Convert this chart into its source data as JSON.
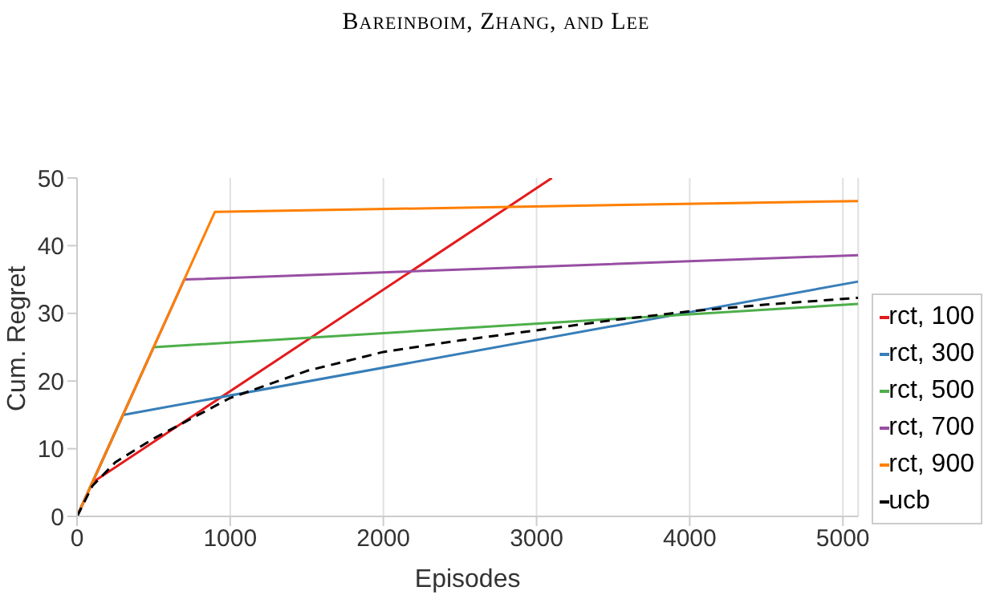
{
  "chart_data": {
    "type": "line",
    "annotations": [
      "Bareinboim, Zhang, and Lee"
    ],
    "xlabel": "Episodes",
    "ylabel": "Cum. Regret",
    "xlim": [
      0,
      5100
    ],
    "xticks": [
      0,
      1000,
      2000,
      3000,
      4000,
      5000
    ],
    "ylim": [
      0,
      50
    ],
    "yticks": [
      0,
      10,
      20,
      30,
      40,
      50
    ],
    "grid": "x",
    "legend": "right",
    "marker": "none",
    "series": [
      {
        "name": "rct, 100",
        "color": "#e41a1c",
        "x": [
          0,
          100,
          3100
        ],
        "values": [
          0,
          5,
          50
        ]
      },
      {
        "name": "rct, 300",
        "color": "#377eb8",
        "x": [
          0,
          300,
          5100
        ],
        "values": [
          0,
          15,
          34.7
        ]
      },
      {
        "name": "rct, 500",
        "color": "#4daf4a",
        "x": [
          0,
          500,
          5100
        ],
        "values": [
          0,
          25,
          31.4
        ]
      },
      {
        "name": "rct, 700",
        "color": "#984ea3",
        "x": [
          0,
          700,
          5100
        ],
        "values": [
          0,
          35,
          38.6
        ]
      },
      {
        "name": "rct, 900",
        "color": "#ff7f00",
        "x": [
          0,
          900,
          5100
        ],
        "values": [
          0,
          45,
          46.6
        ]
      },
      {
        "name": "ucb",
        "color": "#000000",
        "line_style": "dashed",
        "x": [
          0,
          100,
          250,
          500,
          1000,
          1500,
          2000,
          2500,
          3000,
          3500,
          4000,
          4500,
          5100
        ],
        "values": [
          0,
          4.5,
          8,
          11.5,
          17.5,
          21.5,
          24.3,
          26,
          27.5,
          29,
          30.3,
          31.3,
          32.3
        ]
      }
    ]
  }
}
